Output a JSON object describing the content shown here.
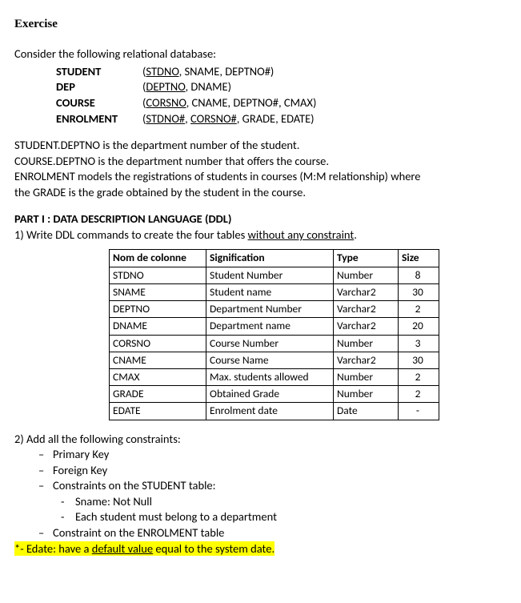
{
  "heading": "Exercise",
  "intro": "Consider the following relational database:",
  "schema": [
    {
      "name": "STUDENT",
      "open": "(",
      "pk": "STDNO",
      "rest": ", SNAME, DEPTNO#)"
    },
    {
      "name": "DEP",
      "open": "(",
      "pk": "DEPTNO",
      "rest": ", DNAME)"
    },
    {
      "name": "COURSE",
      "open": "(",
      "pk": "CORSNO",
      "rest": ", CNAME, DEPTNO#, CMAX)"
    }
  ],
  "enrolment": {
    "name": "ENROLMENT",
    "open": "(",
    "pk1": "STDNO#",
    "sep": ", ",
    "pk2": "CORSNO#",
    "rest": ", GRADE, EDATE)"
  },
  "explain": {
    "l1": "STUDENT.DEPTNO is the department number of the student.",
    "l2": "COURSE.DEPTNO is the department number that offers the course.",
    "l3": "ENROLMENT models the registrations of students in courses (M:M relationship) where",
    "l4": "the GRADE is the grade obtained by the student in the course."
  },
  "part1_title": "PART I : DATA DESCRIPTION LANGUAGE (DDL)",
  "q1_pre": "1)   Write DDL commands to create the four tables ",
  "q1_u": "without any constraint",
  "q1_post": ".",
  "table": {
    "headers": {
      "c1": "Nom de colonne",
      "c2": "Signification",
      "c3": "Type",
      "c4": "Size"
    },
    "rows": [
      {
        "c1": "STDNO",
        "c2": "Student Number",
        "c3": "Number",
        "c4": "8"
      },
      {
        "c1": "SNAME",
        "c2": "Student name",
        "c3": "Varchar2",
        "c4": "30"
      },
      {
        "c1": "DEPTNO",
        "c2": "Department Number",
        "c3": "Varchar2",
        "c4": "2"
      },
      {
        "c1": "DNAME",
        "c2": "Department name",
        "c3": "Varchar2",
        "c4": "20"
      },
      {
        "c1": "CORSNO",
        "c2": "Course Number",
        "c3": "Number",
        "c4": "3"
      },
      {
        "c1": "CNAME",
        "c2": "Course Name",
        "c3": "Varchar2",
        "c4": "30"
      },
      {
        "c1": "CMAX",
        "c2": "Max. students allowed",
        "c3": "Number",
        "c4": "2"
      },
      {
        "c1": "GRADE",
        "c2": "Obtained Grade",
        "c3": "Number",
        "c4": "2"
      },
      {
        "c1": "EDATE",
        "c2": "Enrolment date",
        "c3": "Date",
        "c4": "-"
      }
    ]
  },
  "q2": "2)   Add all the following  constraints:",
  "cons": {
    "a": "Primary Key",
    "b": "Foreign Key",
    "c": "Constraints on the STUDENT table:",
    "c1": "Sname: Not Null",
    "c2": "Each student must belong to a department",
    "d": "Constraint on the ENROLMENT table"
  },
  "hl_pre": "*- Edate: have a ",
  "hl_u": "default value",
  "hl_post": " equal to the system date."
}
